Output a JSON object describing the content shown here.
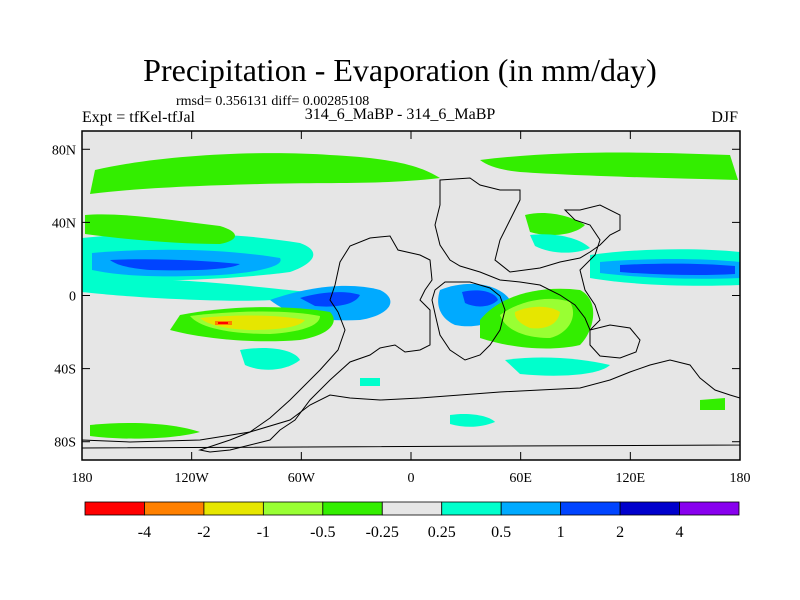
{
  "title": "Precipitation - Evaporation (in mm/day)",
  "stats": "rmsd= 0.356131 diff= 0.00285108",
  "experiment": "Expt = tfKel-tfJal",
  "runs": "314_6_MaBP - 314_6_MaBP",
  "season": "DJF",
  "map": {
    "lat_ticks": [
      "80N",
      "40N",
      "0",
      "40S",
      "80S"
    ],
    "lat_values": [
      80,
      40,
      0,
      -40,
      -80
    ],
    "lon_ticks": [
      "180",
      "120W",
      "60W",
      "0",
      "60E",
      "120E",
      "180"
    ],
    "lon_values": [
      -180,
      -120,
      -60,
      0,
      60,
      120,
      180
    ],
    "lat_range": [
      -90,
      90
    ],
    "lon_range": [
      -180,
      180
    ],
    "background_color": "#e6e6e6"
  },
  "colorbar": {
    "labels": [
      "-4",
      "-2",
      "-1",
      "-0.5",
      "-0.25",
      "0.25",
      "0.5",
      "1",
      "2",
      "4"
    ],
    "colors": [
      "#ff0000",
      "#ff8000",
      "#e6e600",
      "#99ff33",
      "#33ee00",
      "#e6e6e6",
      "#00ffcc",
      "#00aaff",
      "#0044ff",
      "#0000cc",
      "#8800ee"
    ]
  }
}
